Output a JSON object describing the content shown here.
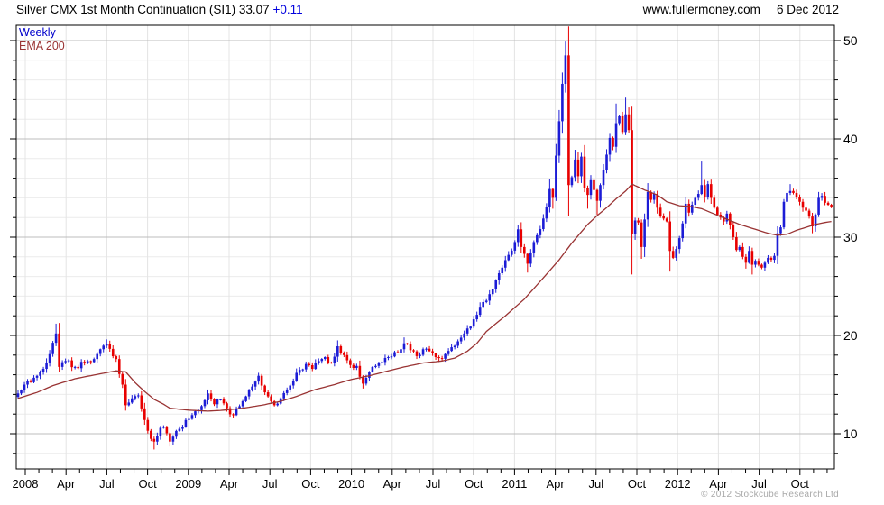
{
  "header": {
    "title": "Silver CMX 1st Month Continuation (SI1)",
    "last_price": "33.07",
    "change": "+0.11",
    "website": "www.fullermoney.com",
    "date": "6 Dec 2012"
  },
  "legend": {
    "timeframe": "Weekly",
    "indicator": "EMA 200"
  },
  "footer": {
    "copyright": "© 2012 Stockcube Research Ltd"
  },
  "chart_data": {
    "type": "candlestick",
    "title": "Silver CMX 1st Month Continuation (SI1) weekly price with 200-period EMA",
    "x_axis": {
      "tick_labels": [
        "2008",
        "Apr",
        "Jul",
        "Oct",
        "2009",
        "Apr",
        "Jul",
        "Oct",
        "2010",
        "Apr",
        "Jul",
        "Oct",
        "2011",
        "Apr",
        "Jul",
        "Oct",
        "2012",
        "Apr",
        "Jul",
        "Oct"
      ],
      "minor_ticks": "monthly",
      "weeks_total": 258
    },
    "y_axis": {
      "range": [
        6.4,
        51.6
      ],
      "major_ticks": [
        50,
        40,
        30,
        20,
        10
      ],
      "minor_step": 2,
      "side": "right"
    },
    "series": {
      "close_anchors": [
        [
          0,
          14.1
        ],
        [
          2,
          15.0
        ],
        [
          5,
          15.7
        ],
        [
          8,
          16.6
        ],
        [
          10,
          18.1
        ],
        [
          12,
          20.2
        ],
        [
          13,
          16.8
        ],
        [
          15,
          17.4
        ],
        [
          18,
          16.8
        ],
        [
          21,
          17.2
        ],
        [
          24,
          17.6
        ],
        [
          26,
          18.6
        ],
        [
          28,
          19.1
        ],
        [
          31,
          17.6
        ],
        [
          33,
          15.0
        ],
        [
          34,
          12.9
        ],
        [
          36,
          13.6
        ],
        [
          38,
          13.9
        ],
        [
          40,
          11.4
        ],
        [
          41,
          10.3
        ],
        [
          43,
          9.2
        ],
        [
          45,
          10.6
        ],
        [
          46,
          10.7
        ],
        [
          48,
          9.2
        ],
        [
          49,
          9.7
        ],
        [
          51,
          10.5
        ],
        [
          53,
          11.4
        ],
        [
          55,
          11.9
        ],
        [
          57,
          12.4
        ],
        [
          59,
          13.4
        ],
        [
          60,
          14.1
        ],
        [
          62,
          13.0
        ],
        [
          64,
          13.5
        ],
        [
          66,
          12.6
        ],
        [
          68,
          11.9
        ],
        [
          70,
          12.8
        ],
        [
          72,
          13.8
        ],
        [
          74,
          14.8
        ],
        [
          76,
          15.9
        ],
        [
          77,
          14.9
        ],
        [
          79,
          13.8
        ],
        [
          81,
          12.9
        ],
        [
          83,
          13.6
        ],
        [
          85,
          14.5
        ],
        [
          87,
          15.4
        ],
        [
          89,
          16.5
        ],
        [
          91,
          17.1
        ],
        [
          93,
          16.6
        ],
        [
          95,
          17.4
        ],
        [
          97,
          17.8
        ],
        [
          99,
          17.2
        ],
        [
          101,
          18.9
        ],
        [
          103,
          18.0
        ],
        [
          105,
          17.0
        ],
        [
          107,
          16.9
        ],
        [
          108,
          15.8
        ],
        [
          109,
          15.1
        ],
        [
          111,
          16.3
        ],
        [
          113,
          16.9
        ],
        [
          115,
          17.3
        ],
        [
          117,
          17.8
        ],
        [
          119,
          18.3
        ],
        [
          121,
          18.6
        ],
        [
          122,
          19.2
        ],
        [
          124,
          18.5
        ],
        [
          126,
          17.9
        ],
        [
          128,
          18.6
        ],
        [
          130,
          18.4
        ],
        [
          132,
          17.8
        ],
        [
          133,
          17.7
        ],
        [
          135,
          18.1
        ],
        [
          137,
          18.8
        ],
        [
          139,
          19.4
        ],
        [
          141,
          20.2
        ],
        [
          143,
          20.9
        ],
        [
          145,
          22.1
        ],
        [
          147,
          23.4
        ],
        [
          149,
          24.2
        ],
        [
          151,
          25.6
        ],
        [
          153,
          26.9
        ],
        [
          155,
          28.2
        ],
        [
          157,
          29.5
        ],
        [
          158,
          30.8
        ],
        [
          159,
          29.0
        ],
        [
          161,
          27.3
        ],
        [
          163,
          29.5
        ],
        [
          164,
          30.2
        ],
        [
          166,
          31.9
        ],
        [
          167,
          33.1
        ],
        [
          168,
          34.9
        ],
        [
          169,
          34.0
        ],
        [
          170,
          38.3
        ],
        [
          171,
          41.8
        ],
        [
          172,
          45.6
        ],
        [
          173,
          48.5
        ],
        [
          174,
          35.3
        ],
        [
          175,
          36.1
        ],
        [
          176,
          37.9
        ],
        [
          177,
          36.2
        ],
        [
          178,
          38.2
        ],
        [
          179,
          35.0
        ],
        [
          180,
          34.3
        ],
        [
          181,
          35.8
        ],
        [
          182,
          34.8
        ],
        [
          183,
          33.7
        ],
        [
          184,
          35.3
        ],
        [
          185,
          36.8
        ],
        [
          186,
          38.4
        ],
        [
          187,
          40.1
        ],
        [
          188,
          39.2
        ],
        [
          189,
          41.6
        ],
        [
          190,
          42.3
        ],
        [
          191,
          40.7
        ],
        [
          192,
          42.5
        ],
        [
          193,
          40.9
        ],
        [
          194,
          30.3
        ],
        [
          195,
          31.7
        ],
        [
          196,
          31.5
        ],
        [
          197,
          29.0
        ],
        [
          198,
          31.8
        ],
        [
          199,
          34.6
        ],
        [
          200,
          33.8
        ],
        [
          201,
          34.4
        ],
        [
          202,
          33.0
        ],
        [
          203,
          32.2
        ],
        [
          204,
          31.9
        ],
        [
          205,
          31.6
        ],
        [
          206,
          28.6
        ],
        [
          207,
          27.9
        ],
        [
          208,
          28.8
        ],
        [
          209,
          29.9
        ],
        [
          210,
          31.4
        ],
        [
          211,
          33.4
        ],
        [
          212,
          32.5
        ],
        [
          213,
          33.3
        ],
        [
          214,
          34.0
        ],
        [
          215,
          34.4
        ],
        [
          216,
          35.3
        ],
        [
          217,
          34.1
        ],
        [
          218,
          35.4
        ],
        [
          219,
          34.0
        ],
        [
          220,
          33.0
        ],
        [
          221,
          32.3
        ],
        [
          222,
          32.0
        ],
        [
          223,
          31.6
        ],
        [
          224,
          32.4
        ],
        [
          225,
          31.2
        ],
        [
          226,
          30.0
        ],
        [
          227,
          28.7
        ],
        [
          228,
          29.0
        ],
        [
          229,
          28.0
        ],
        [
          230,
          27.4
        ],
        [
          231,
          28.6
        ],
        [
          232,
          27.2
        ],
        [
          233,
          27.6
        ],
        [
          234,
          27.2
        ],
        [
          235,
          26.9
        ],
        [
          236,
          27.4
        ],
        [
          237,
          27.9
        ],
        [
          238,
          27.7
        ],
        [
          239,
          28.1
        ],
        [
          240,
          30.4
        ],
        [
          241,
          31.0
        ],
        [
          242,
          33.6
        ],
        [
          243,
          34.5
        ],
        [
          244,
          34.7
        ],
        [
          245,
          34.5
        ],
        [
          246,
          34.1
        ],
        [
          247,
          33.6
        ],
        [
          248,
          33.0
        ],
        [
          249,
          32.7
        ],
        [
          250,
          32.1
        ],
        [
          251,
          31.1
        ],
        [
          252,
          32.3
        ],
        [
          253,
          34.0
        ],
        [
          254,
          34.2
        ],
        [
          255,
          33.5
        ],
        [
          256,
          33.3
        ],
        [
          257,
          33.07
        ]
      ],
      "high_overrides": [
        [
          12,
          21.2
        ],
        [
          28,
          19.6
        ],
        [
          60,
          14.5
        ],
        [
          76,
          16.2
        ],
        [
          101,
          19.5
        ],
        [
          122,
          19.8
        ],
        [
          158,
          31.2
        ],
        [
          168,
          35.9
        ],
        [
          173,
          49.9
        ],
        [
          176,
          38.9
        ],
        [
          189,
          43.6
        ],
        [
          192,
          44.2
        ],
        [
          199,
          35.5
        ],
        [
          216,
          37.7
        ],
        [
          244,
          35.4
        ],
        [
          253,
          34.6
        ]
      ],
      "low_overrides": [
        [
          43,
          8.4
        ],
        [
          48,
          8.7
        ],
        [
          109,
          14.6
        ],
        [
          133,
          17.3
        ],
        [
          161,
          26.4
        ],
        [
          169,
          32.9
        ],
        [
          174,
          32.2
        ],
        [
          180,
          32.9
        ],
        [
          183,
          32.3
        ],
        [
          194,
          26.2
        ],
        [
          197,
          27.8
        ],
        [
          206,
          26.5
        ],
        [
          230,
          26.8
        ],
        [
          232,
          26.2
        ],
        [
          251,
          30.4
        ]
      ],
      "ema_anchors": [
        [
          0,
          13.6
        ],
        [
          6,
          14.2
        ],
        [
          11,
          14.9
        ],
        [
          18,
          15.6
        ],
        [
          26,
          16.1
        ],
        [
          31,
          16.4
        ],
        [
          34,
          16.3
        ],
        [
          37,
          15.2
        ],
        [
          40,
          14.3
        ],
        [
          43,
          13.5
        ],
        [
          46,
          13.0
        ],
        [
          48,
          12.6
        ],
        [
          54,
          12.4
        ],
        [
          60,
          12.3
        ],
        [
          65,
          12.4
        ],
        [
          71,
          12.6
        ],
        [
          77,
          12.9
        ],
        [
          83,
          13.3
        ],
        [
          88,
          13.8
        ],
        [
          94,
          14.5
        ],
        [
          100,
          15.0
        ],
        [
          105,
          15.5
        ],
        [
          111,
          15.9
        ],
        [
          117,
          16.4
        ],
        [
          122,
          16.8
        ],
        [
          128,
          17.2
        ],
        [
          134,
          17.4
        ],
        [
          138,
          17.7
        ],
        [
          142,
          18.4
        ],
        [
          145,
          19.2
        ],
        [
          148,
          20.4
        ],
        [
          154,
          22.0
        ],
        [
          160,
          23.7
        ],
        [
          165,
          25.5
        ],
        [
          171,
          27.7
        ],
        [
          175,
          29.4
        ],
        [
          180,
          31.3
        ],
        [
          183,
          32.2
        ],
        [
          186,
          33.0
        ],
        [
          189,
          33.9
        ],
        [
          192,
          34.7
        ],
        [
          194,
          35.4
        ],
        [
          198,
          34.8
        ],
        [
          202,
          34.3
        ],
        [
          205,
          33.6
        ],
        [
          209,
          33.2
        ],
        [
          213,
          33.1
        ],
        [
          216,
          32.9
        ],
        [
          219,
          32.5
        ],
        [
          222,
          32.1
        ],
        [
          225,
          31.7
        ],
        [
          228,
          31.3
        ],
        [
          231,
          31.0
        ],
        [
          234,
          30.7
        ],
        [
          237,
          30.4
        ],
        [
          240,
          30.2
        ],
        [
          243,
          30.3
        ],
        [
          246,
          30.7
        ],
        [
          249,
          31.0
        ],
        [
          252,
          31.3
        ],
        [
          255,
          31.5
        ],
        [
          257,
          31.6
        ]
      ]
    },
    "colors": {
      "up": "#1c1cd6",
      "down": "#e80000",
      "ema": "#993333",
      "grid_minor": "#ebebeb",
      "grid_major": "#bcbcbc",
      "axis": "#000000"
    }
  }
}
